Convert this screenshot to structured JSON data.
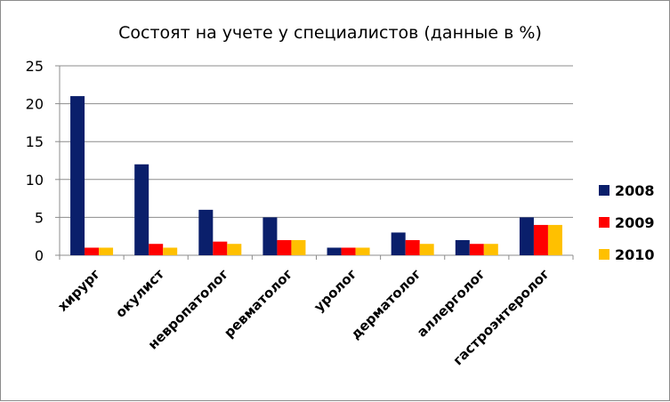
{
  "chart_data": {
    "type": "bar",
    "title": "Состоят на учете у специалистов (данные в %)",
    "categories": [
      "хирург",
      "окулист",
      "невропатолог",
      "ревматолог",
      "уролог",
      "дерматолог",
      "аллерголог",
      "гастроэнтеролог"
    ],
    "series": [
      {
        "name": "2008",
        "color": "#0a1f6b",
        "values": [
          21,
          12,
          6,
          5,
          1,
          3,
          2,
          5
        ]
      },
      {
        "name": "2009",
        "color": "#ff0000",
        "values": [
          1,
          1.5,
          1.8,
          2,
          1,
          2,
          1.5,
          4
        ]
      },
      {
        "name": "2010",
        "color": "#ffc000",
        "values": [
          1,
          1,
          1.5,
          2,
          1,
          1.5,
          1.5,
          4
        ]
      }
    ],
    "ylim": [
      0,
      25
    ],
    "yticks": [
      0,
      5,
      10,
      15,
      20,
      25
    ],
    "grid": true,
    "legend_position": "right"
  }
}
